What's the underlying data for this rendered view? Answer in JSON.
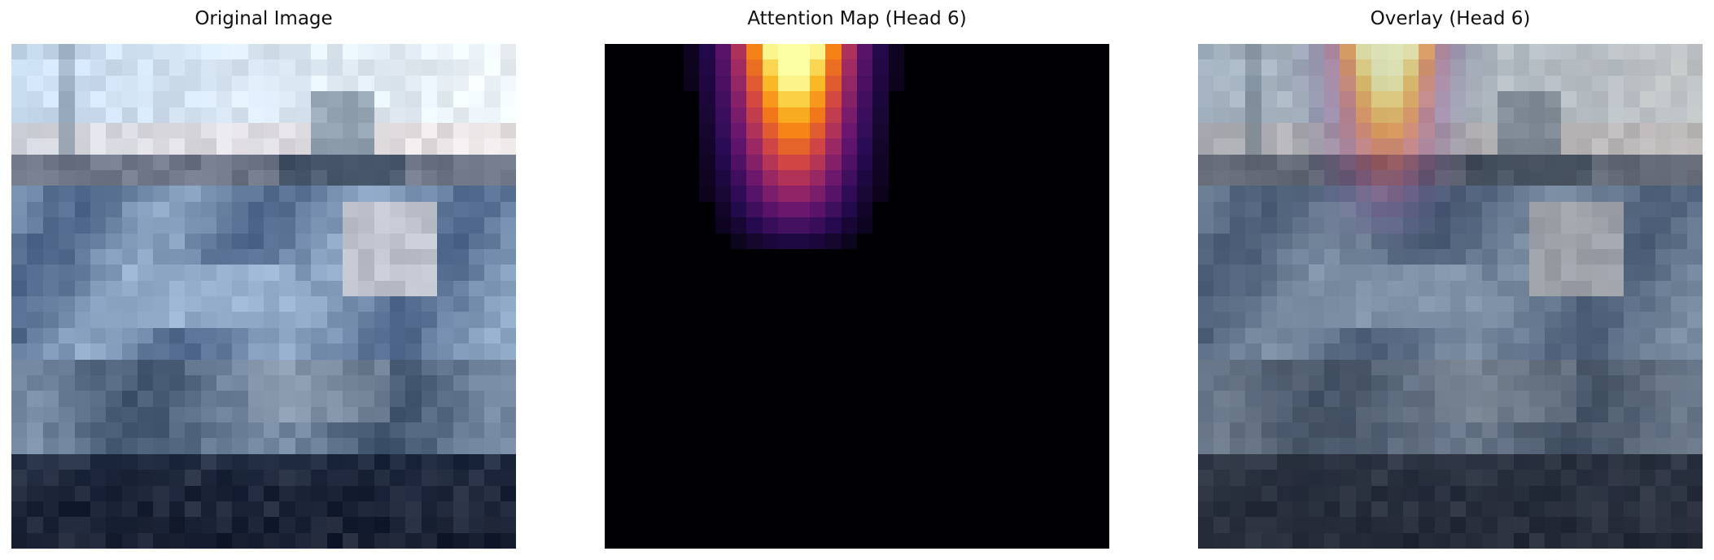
{
  "panels": [
    {
      "title": "Original Image"
    },
    {
      "title": "Attention Map (Head 6)"
    },
    {
      "title": "Overlay (Head 6)"
    }
  ],
  "image": {
    "grid_size": 32,
    "description_free": true
  },
  "attention": {
    "colormap": "inferno",
    "peak_column_range": [
      9,
      14
    ],
    "peak_row_range": [
      0,
      11
    ]
  },
  "colors": {
    "background": "#ffffff",
    "title_text": "#111111"
  }
}
